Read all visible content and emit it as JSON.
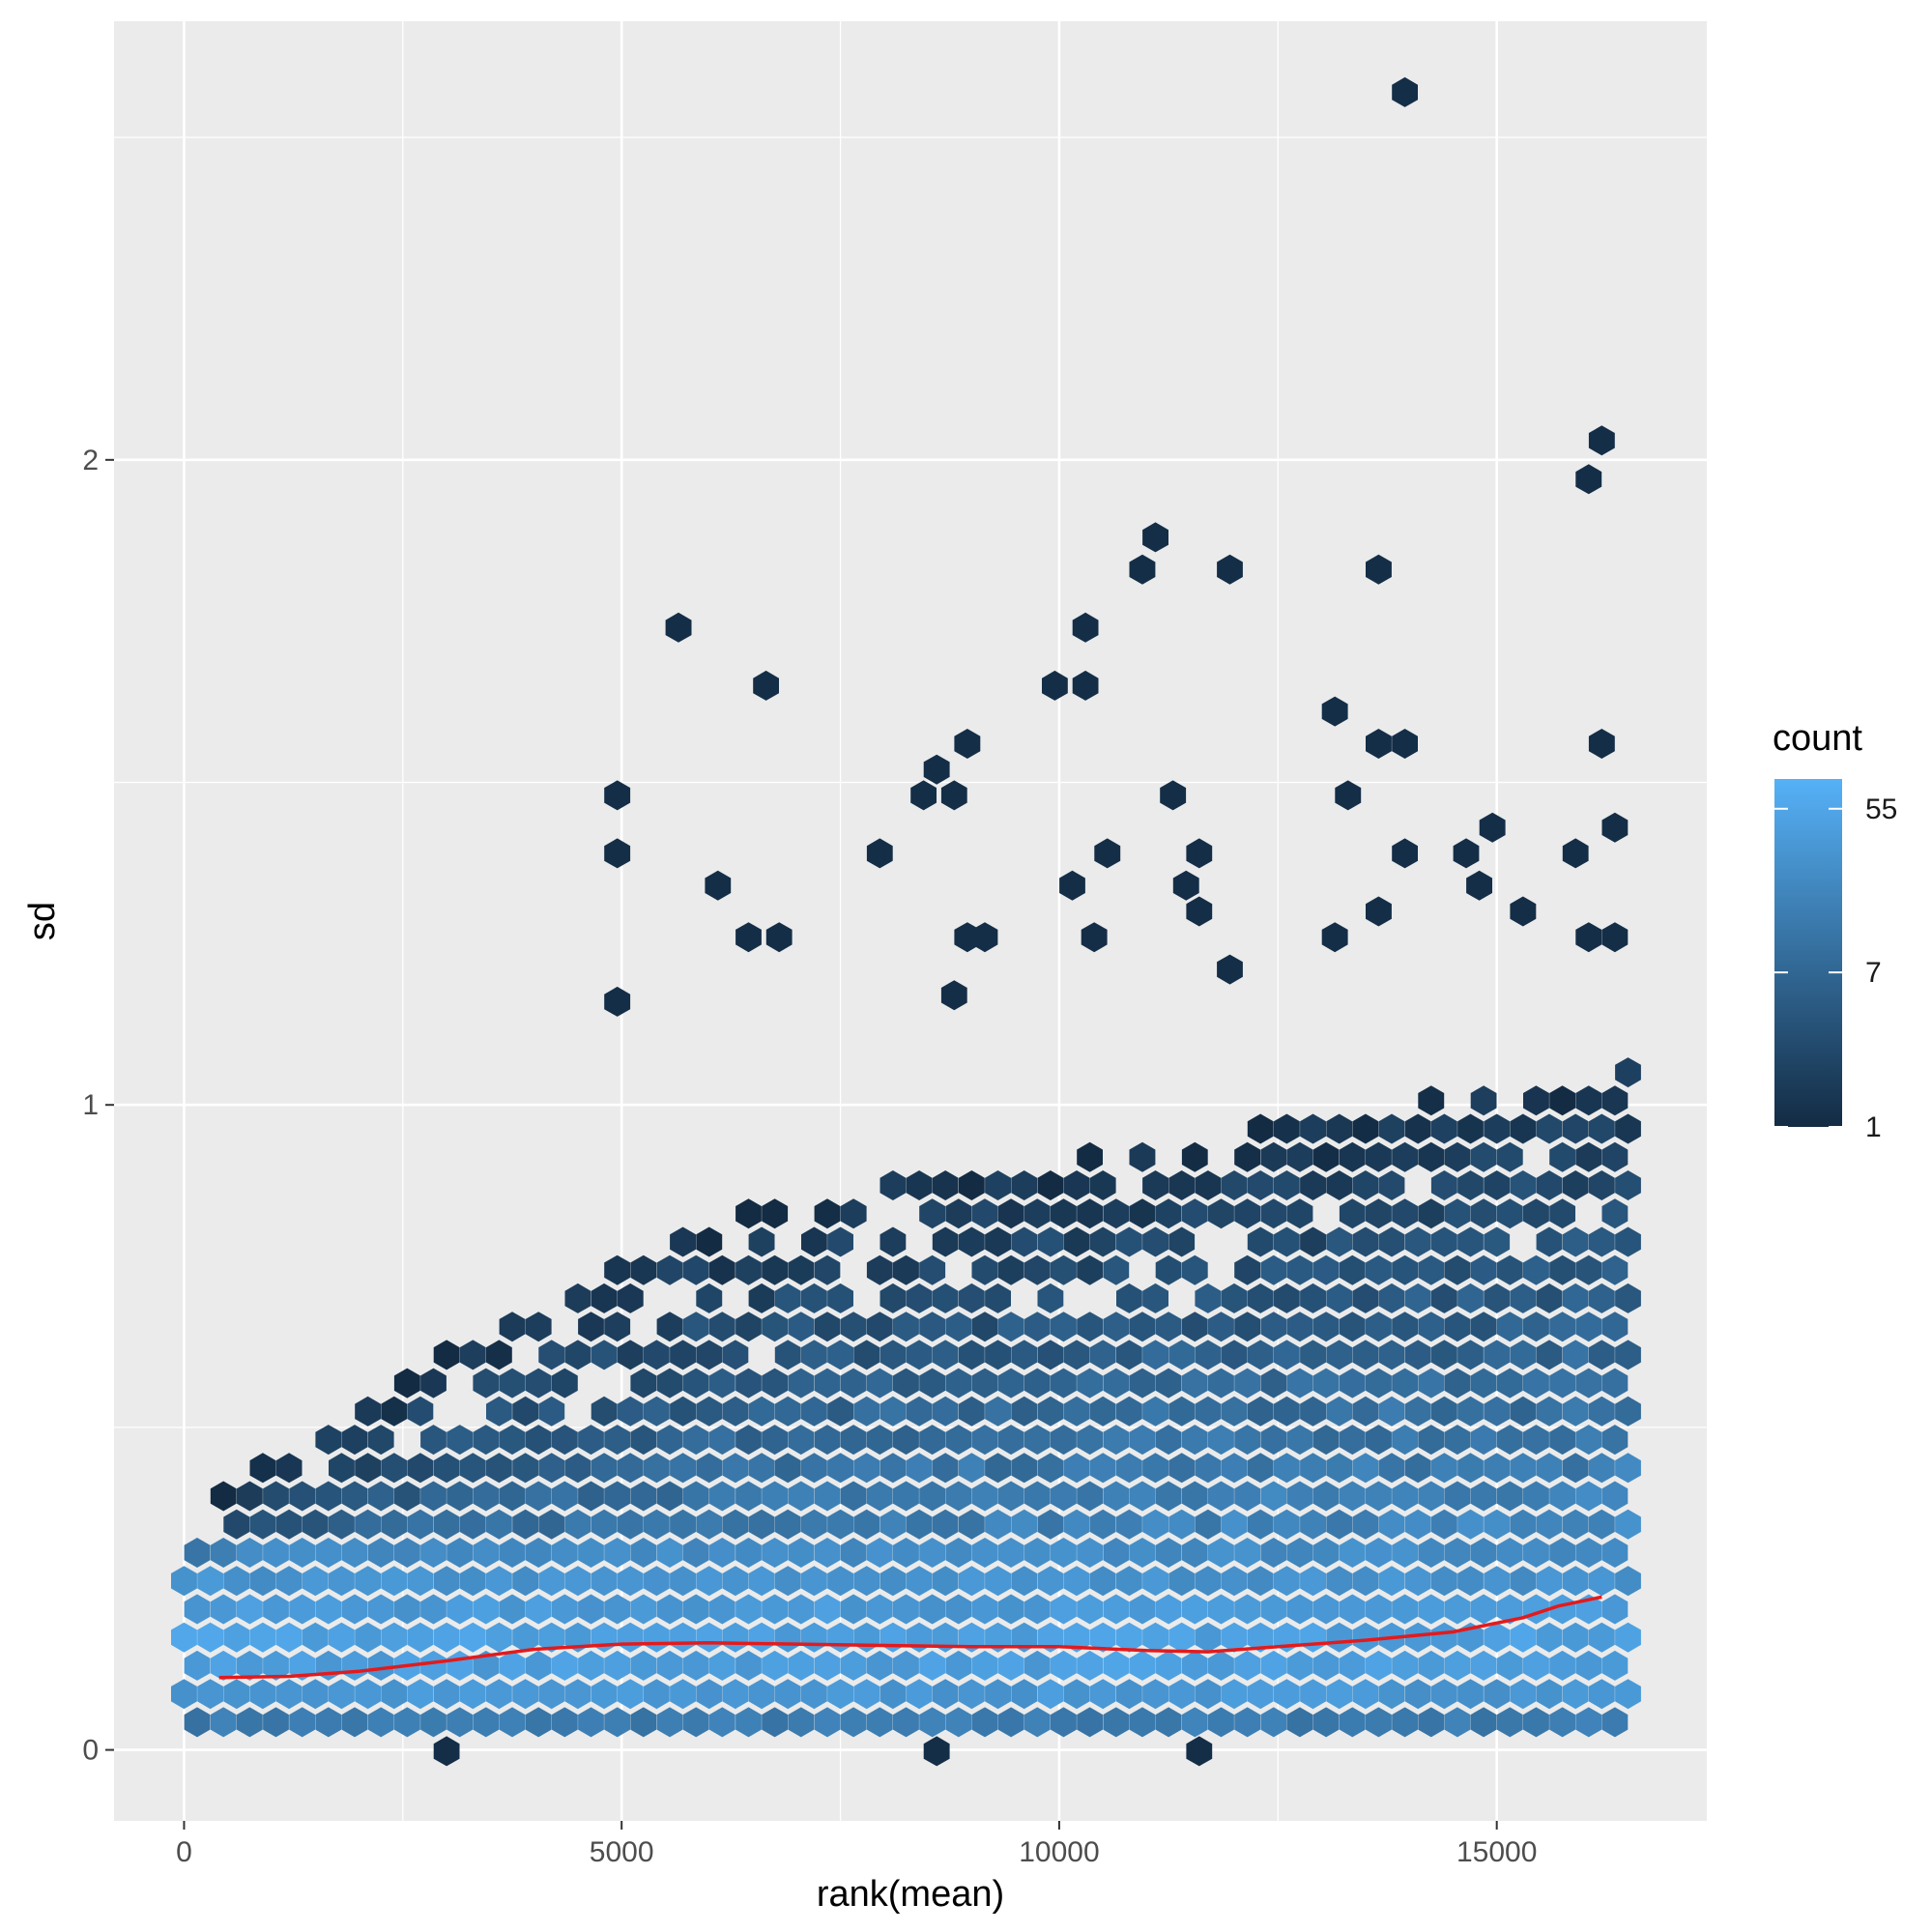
{
  "chart_data": {
    "type": "hexbin",
    "xlabel": "rank(mean)",
    "ylabel": "sd",
    "xlim": [
      -800,
      17400
    ],
    "ylim": [
      -0.11,
      2.68
    ],
    "x_ticks": [
      0,
      5000,
      10000,
      15000
    ],
    "x_tick_labels": [
      "0",
      "5000",
      "10000",
      "15000"
    ],
    "y_ticks": [
      0,
      1,
      2
    ],
    "y_tick_labels": [
      "0",
      "1",
      "2"
    ],
    "grid": true,
    "legend": {
      "title": "count",
      "position": "right",
      "scale": "log",
      "range": [
        1,
        80
      ],
      "breaks": [
        1,
        7,
        55
      ],
      "labels": [
        "1",
        "7",
        "55"
      ],
      "color_low": "#132B43",
      "color_high": "#56B1F7"
    },
    "smooth_line": {
      "color": "#e31a1c",
      "x": [
        400,
        1200,
        2000,
        3000,
        4000,
        5000,
        6000,
        7000,
        8000,
        9000,
        10000,
        11000,
        11700,
        12500,
        13500,
        14500,
        15300,
        15700,
        16200
      ],
      "y": [
        0.112,
        0.114,
        0.122,
        0.138,
        0.156,
        0.164,
        0.166,
        0.164,
        0.162,
        0.16,
        0.16,
        0.154,
        0.152,
        0.16,
        0.17,
        0.183,
        0.205,
        0.223,
        0.237
      ]
    },
    "outlier_bins": [
      [
        13950,
        2.57
      ],
      [
        16200,
        2.03
      ],
      [
        16050,
        1.97
      ],
      [
        11100,
        1.88
      ],
      [
        10950,
        1.83
      ],
      [
        11950,
        1.83
      ],
      [
        13650,
        1.83
      ],
      [
        5650,
        1.74
      ],
      [
        10300,
        1.74
      ],
      [
        6650,
        1.65
      ],
      [
        9950,
        1.65
      ],
      [
        10300,
        1.65
      ],
      [
        13150,
        1.61
      ],
      [
        8950,
        1.56
      ],
      [
        13650,
        1.56
      ],
      [
        13950,
        1.56
      ],
      [
        16200,
        1.56
      ],
      [
        8600,
        1.52
      ],
      [
        4950,
        1.48
      ],
      [
        8450,
        1.48
      ],
      [
        8800,
        1.48
      ],
      [
        11300,
        1.48
      ],
      [
        13300,
        1.48
      ],
      [
        14950,
        1.43
      ],
      [
        16350,
        1.43
      ],
      [
        4950,
        1.39
      ],
      [
        7950,
        1.39
      ],
      [
        10550,
        1.39
      ],
      [
        11600,
        1.39
      ],
      [
        13950,
        1.39
      ],
      [
        14650,
        1.39
      ],
      [
        15900,
        1.39
      ],
      [
        6100,
        1.34
      ],
      [
        10150,
        1.34
      ],
      [
        11450,
        1.34
      ],
      [
        14800,
        1.34
      ],
      [
        11600,
        1.3
      ],
      [
        13650,
        1.3
      ],
      [
        15300,
        1.3
      ],
      [
        6450,
        1.26
      ],
      [
        6800,
        1.26
      ],
      [
        8950,
        1.26
      ],
      [
        9150,
        1.26
      ],
      [
        10400,
        1.26
      ],
      [
        13150,
        1.26
      ],
      [
        16050,
        1.26
      ],
      [
        16350,
        1.26
      ],
      [
        4950,
        1.16
      ],
      [
        11950,
        1.21
      ],
      [
        8800,
        1.17
      ]
    ]
  }
}
